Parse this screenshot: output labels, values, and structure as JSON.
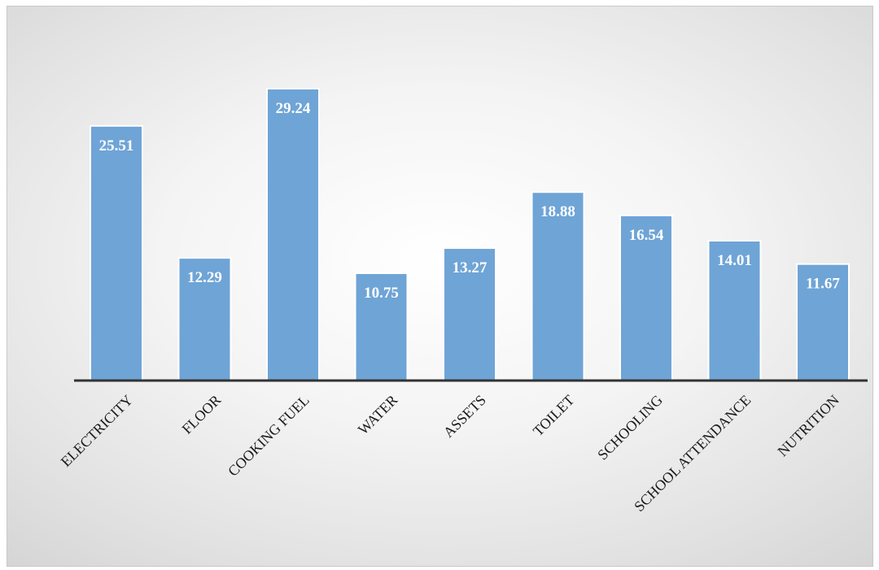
{
  "chart_data": {
    "type": "bar",
    "categories": [
      "ELECTRICITY",
      "FLOOR",
      "COOKING FUEL",
      "WATER",
      "ASSETS",
      "TOILET",
      "SCHOOLING",
      "SCHOOL ATTENDANCE",
      "NUTRITION"
    ],
    "values": [
      25.51,
      12.29,
      29.24,
      10.75,
      13.27,
      18.88,
      16.54,
      14.01,
      11.67
    ],
    "value_labels": [
      "25.51",
      "12.29",
      "29.24",
      "10.75",
      "13.27",
      "18.88",
      "16.54",
      "14.01",
      "11.67"
    ],
    "title": "",
    "xlabel": "",
    "ylabel": "",
    "ylim": [
      0,
      32
    ],
    "grid": false,
    "legend": "none",
    "colors": {
      "bar": "#6fa4d6",
      "bar_edge": "#ffffff",
      "axis": "#333333",
      "label": "#ffffff"
    }
  }
}
